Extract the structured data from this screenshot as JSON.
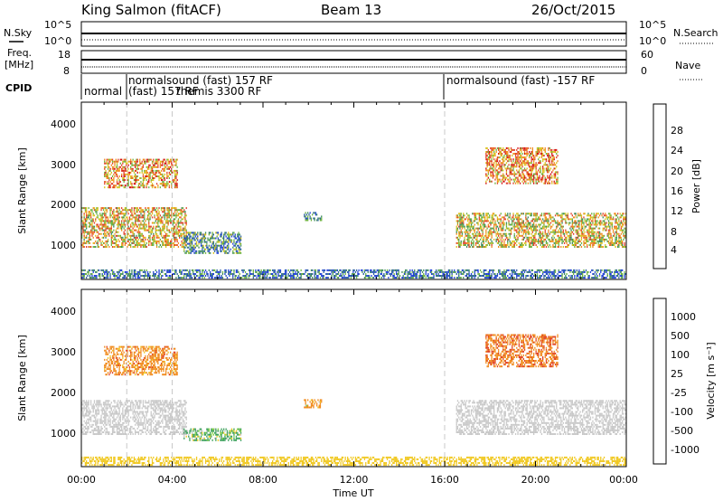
{
  "header": {
    "title": "King Salmon (fitACF)",
    "beam": "Beam 13",
    "date": "26/Oct/2015"
  },
  "noise_panel": {
    "left_label": "N.Sky",
    "right_label": "N.Search",
    "left_ticks": [
      "10^5",
      "10^0"
    ],
    "right_ticks": [
      "10^5",
      "10^0"
    ]
  },
  "freq_panel": {
    "left_label_1": "Freq.",
    "left_label_2": "[MHz]",
    "right_label": "Nave",
    "left_ticks": [
      "18",
      "8"
    ],
    "right_ticks": [
      "60",
      "0"
    ]
  },
  "cpid_panel": {
    "label": "CPID",
    "segments": [
      {
        "start": "00:00",
        "text": "normal"
      },
      {
        "start": "01:00",
        "text": "normalsound (fast) 157 RF"
      },
      {
        "start": "01:00",
        "text": "(fast) 157 RF"
      },
      {
        "start": "04:00",
        "text": "themis 3300 RF"
      },
      {
        "start": "16:00",
        "text": "normalsound (fast) -157 RF"
      }
    ]
  },
  "x_axis": {
    "label": "Time UT",
    "ticks": [
      "00:00",
      "04:00",
      "08:00",
      "12:00",
      "16:00",
      "20:00",
      "00:00"
    ]
  },
  "power_panel": {
    "ylabel": "Slant Range [km]",
    "yticks": [
      "1000",
      "2000",
      "3000",
      "4000"
    ],
    "colorbar_label": "Power [dB]",
    "colorbar_ticks": [
      "4",
      "8",
      "12",
      "16",
      "20",
      "24",
      "28"
    ]
  },
  "velocity_panel": {
    "ylabel": "Slant Range [km]",
    "yticks": [
      "1000",
      "2000",
      "3000",
      "4000"
    ],
    "colorbar_label": "Velocity [m s⁻¹]",
    "colorbar_ticks": [
      "1000",
      "500",
      "100",
      "25",
      "-25",
      "-100",
      "-500",
      "-1000"
    ]
  },
  "colors": {
    "power_scale": [
      "#1f3fd8",
      "#2a5fa0",
      "#3c8a5c",
      "#6db33f",
      "#d9c21c",
      "#f08a1c",
      "#e0402a",
      "#d20f0f"
    ],
    "velocity_scale": [
      "#2a3fb0",
      "#2a6ea0",
      "#3aa05a",
      "#7fd040",
      "#c8c8c8",
      "#f0c820",
      "#f08a1c",
      "#e04020",
      "#d00000"
    ],
    "gridline": "#c8c8c8"
  },
  "chart_data": [
    {
      "type": "heatmap",
      "title": "Power",
      "x": [
        "00:00",
        "24:00"
      ],
      "xlim_hours": [
        0,
        24
      ],
      "ylim": [
        180,
        4500
      ],
      "ylabel": "Slant Range [km]",
      "value_label": "Power [dB]",
      "clim": [
        0,
        30
      ],
      "regions": [
        {
          "t": [
            0.0,
            4.6
          ],
          "range": [
            950,
            1900
          ],
          "power": 18
        },
        {
          "t": [
            1.0,
            4.2
          ],
          "range": [
            2400,
            3100
          ],
          "power": 20
        },
        {
          "t": [
            4.5,
            7.0
          ],
          "range": [
            800,
            1300
          ],
          "power": 9
        },
        {
          "t": [
            9.8,
            10.6
          ],
          "range": [
            1600,
            1800
          ],
          "power": 8
        },
        {
          "t": [
            16.5,
            24.0
          ],
          "range": [
            950,
            1800
          ],
          "power": 17
        },
        {
          "t": [
            17.8,
            21.0
          ],
          "range": [
            2500,
            3400
          ],
          "power": 21
        },
        {
          "t": [
            0.0,
            24.0
          ],
          "range": [
            200,
            400
          ],
          "power": 6
        }
      ]
    },
    {
      "type": "heatmap",
      "title": "Velocity",
      "x": [
        "00:00",
        "24:00"
      ],
      "xlim_hours": [
        0,
        24
      ],
      "ylim": [
        180,
        4500
      ],
      "ylabel": "Slant Range [km]",
      "value_label": "Velocity [m s-1]",
      "clim": [
        -1000,
        1000
      ],
      "regions": [
        {
          "t": [
            0.0,
            4.6
          ],
          "range": [
            950,
            1800
          ],
          "velocity": 0
        },
        {
          "t": [
            1.0,
            4.2
          ],
          "range": [
            2400,
            3100
          ],
          "velocity": -300
        },
        {
          "t": [
            4.5,
            7.0
          ],
          "range": [
            800,
            1100
          ],
          "velocity": 150
        },
        {
          "t": [
            9.8,
            10.6
          ],
          "range": [
            1600,
            1800
          ],
          "velocity": -200
        },
        {
          "t": [
            16.5,
            24.0
          ],
          "range": [
            950,
            1800
          ],
          "velocity": 0
        },
        {
          "t": [
            17.8,
            21.0
          ],
          "range": [
            2600,
            3400
          ],
          "velocity": -400
        },
        {
          "t": [
            0.0,
            24.0
          ],
          "range": [
            200,
            400
          ],
          "velocity": -50
        }
      ]
    }
  ]
}
